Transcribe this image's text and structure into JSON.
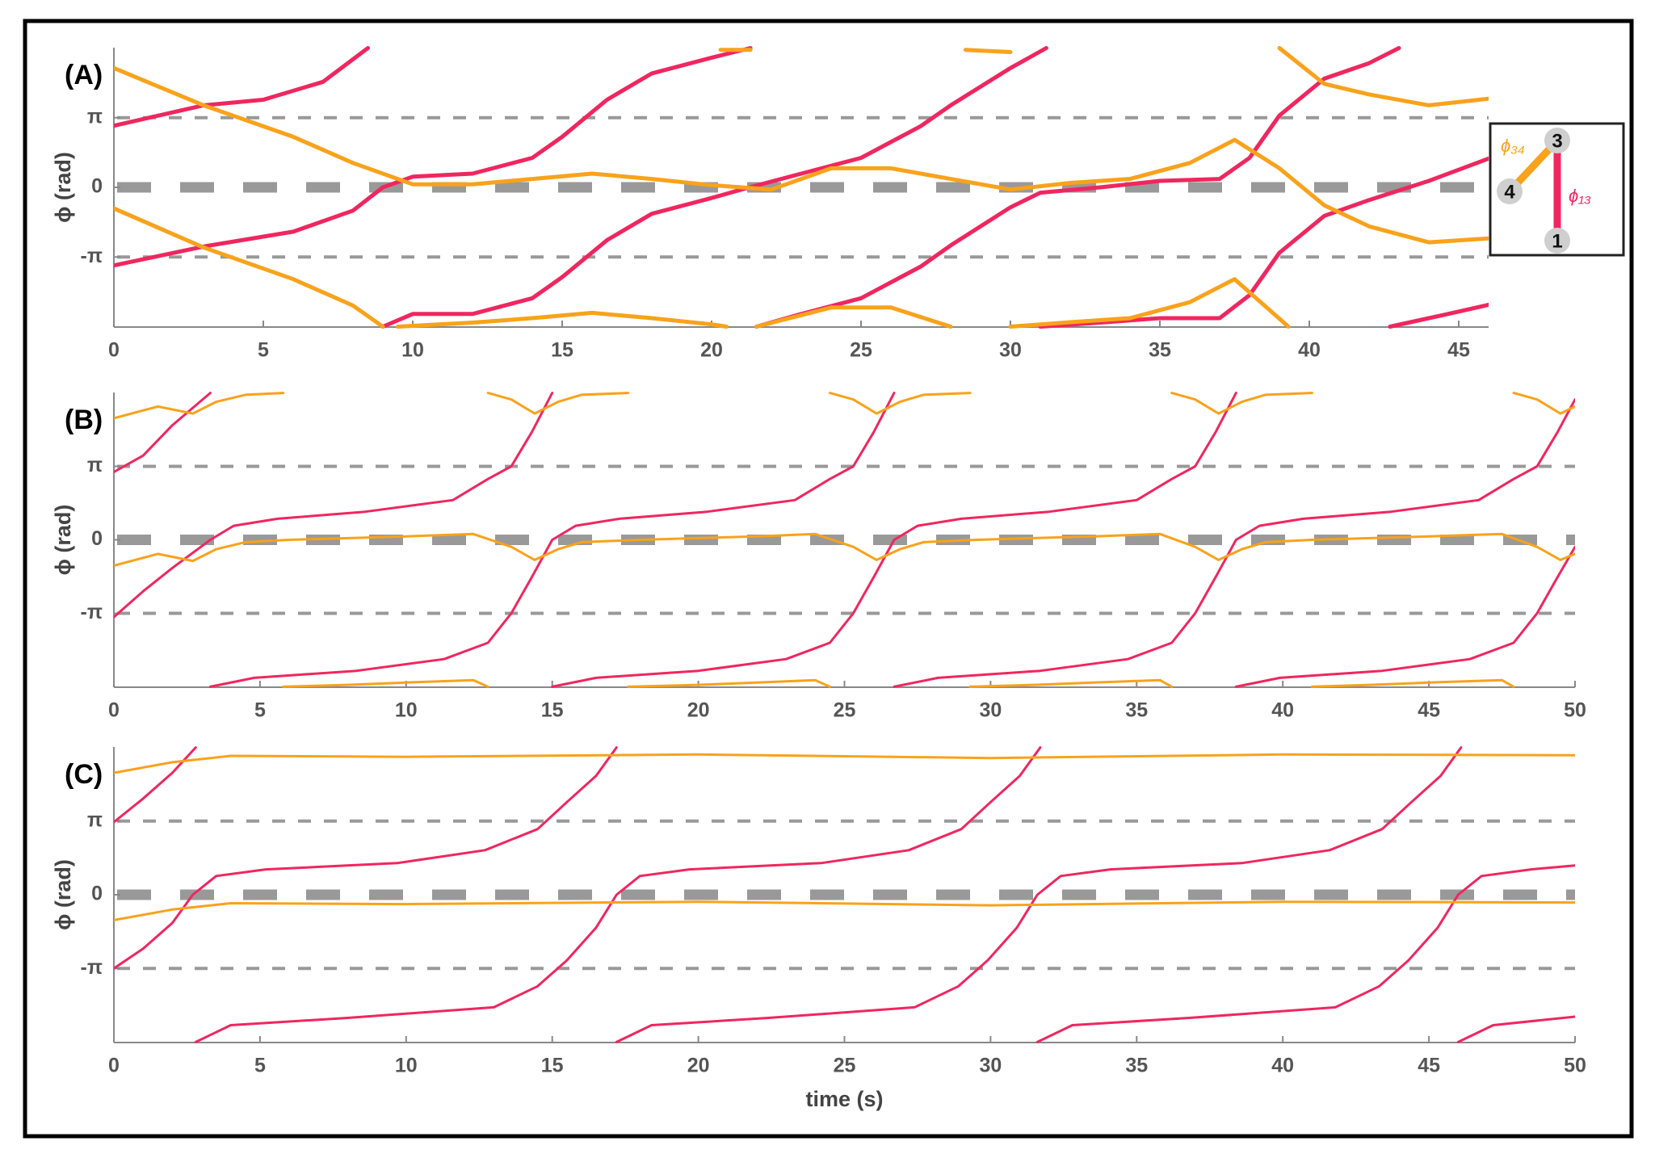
{
  "chart_data": [
    {
      "type": "line",
      "title": "(A)",
      "ylabel": "ϕ (rad)",
      "xlim": [
        0,
        46
      ],
      "xticks": [
        0,
        5,
        10,
        15,
        20,
        25,
        30,
        35,
        40,
        45
      ],
      "ylim": [
        -6.3,
        6.3
      ],
      "yticks": [
        {
          "value": -3.1416,
          "label": "-π"
        },
        0,
        {
          "value": 3.1416,
          "label": "π"
        }
      ],
      "grid": true,
      "inset": {
        "nodes": [
          "3",
          "4",
          "1"
        ],
        "labels": [
          "ϕ₃₄",
          "ϕ₁₃"
        ],
        "colors": [
          "#f9a21b",
          "#f0265f"
        ]
      },
      "series": [
        {
          "color": "#f0265f",
          "x": [
            0,
            3,
            5,
            7,
            8.5
          ],
          "values": [
            2.78,
            3.7,
            3.95,
            4.76,
            6.28
          ]
        },
        {
          "color": "#f0265f",
          "x": [
            0,
            3,
            6,
            8,
            9,
            10,
            12,
            14,
            15,
            16.5,
            18,
            20,
            21.3
          ],
          "values": [
            -3.52,
            -2.67,
            -2.0,
            -1.05,
            0,
            0.48,
            0.62,
            1.33,
            2.28,
            3.95,
            5.14,
            5.85,
            6.28
          ]
        },
        {
          "color": "#f0265f",
          "x": [
            9,
            10,
            12,
            14,
            15,
            16.5,
            18,
            20,
            21,
            23,
            25,
            27,
            28,
            30,
            31.2
          ],
          "values": [
            -6.28,
            -5.71,
            -5.71,
            -5.0,
            -4.05,
            -2.38,
            -1.19,
            -0.48,
            -0.1,
            0.62,
            1.33,
            2.76,
            3.7,
            5.38,
            6.28
          ]
        },
        {
          "color": "#f0265f",
          "x": [
            21.5,
            23,
            25,
            27,
            28,
            30,
            31,
            33,
            35,
            37,
            38,
            39,
            40.5,
            42,
            43
          ],
          "values": [
            -6.28,
            -5.71,
            -5.0,
            -3.57,
            -2.62,
            -0.9,
            -0.24,
            0,
            0.29,
            0.38,
            1.33,
            3.24,
            4.9,
            5.6,
            6.28
          ]
        },
        {
          "color": "#f0265f",
          "x": [
            31,
            33,
            35,
            37,
            38,
            39,
            40.5,
            42,
            44,
            46
          ],
          "values": [
            -6.28,
            -6.1,
            -5.9,
            -5.9,
            -4.86,
            -2.95,
            -1.29,
            -0.57,
            0.29,
            1.3
          ]
        },
        {
          "color": "#f0265f",
          "x": [
            42.7,
            44,
            45,
            46
          ],
          "values": [
            -6.28,
            -5.9,
            -5.6,
            -5.3
          ]
        },
        {
          "color": "#f9a21b",
          "x": [
            0,
            3,
            6,
            8,
            10,
            12,
            14,
            16,
            18,
            20,
            22,
            24,
            26,
            28,
            30,
            32,
            34,
            36,
            37.5,
            39,
            40.5,
            42,
            44,
            46
          ],
          "values": [
            5.38,
            3.7,
            2.28,
            1.1,
            0.14,
            0.14,
            0.38,
            0.62,
            0.38,
            0.1,
            -0.1,
            0.86,
            0.86,
            0.38,
            -0.1,
            0.2,
            0.38,
            1.1,
            2.14,
            0.86,
            -0.81,
            -1.76,
            -2.48,
            -2.3
          ]
        },
        {
          "color": "#f9a21b",
          "x": [
            0,
            3,
            6,
            8,
            9
          ],
          "values": [
            -0.95,
            -2.71,
            -4.14,
            -5.33,
            -6.28
          ]
        },
        {
          "color": "#f9a21b",
          "x": [
            9.5,
            12,
            14,
            16,
            18,
            20,
            20.5
          ],
          "values": [
            -6.28,
            -6.1,
            -5.9,
            -5.66,
            -5.9,
            -6.18,
            -6.28
          ]
        },
        {
          "color": "#f9a21b",
          "x": [
            21.5,
            24,
            26,
            28
          ],
          "values": [
            -6.28,
            -5.42,
            -5.42,
            -6.28
          ]
        },
        {
          "color": "#f9a21b",
          "x": [
            30,
            32,
            34,
            36,
            37.5,
            39.3
          ],
          "values": [
            -6.28,
            -6.08,
            -5.9,
            -5.18,
            -4.14,
            -6.28
          ]
        },
        {
          "color": "#f9a21b",
          "x": [
            20.3,
            21.3
          ],
          "values": [
            6.2,
            6.2
          ]
        },
        {
          "color": "#f9a21b",
          "x": [
            28.5,
            30
          ],
          "values": [
            6.2,
            6.1
          ]
        },
        {
          "color": "#f9a21b",
          "x": [
            39,
            40.5,
            42,
            44,
            46
          ],
          "values": [
            6.28,
            4.67,
            4.19,
            3.7,
            4.0
          ]
        }
      ]
    },
    {
      "type": "line",
      "title": "(B)",
      "ylabel": "ϕ (rad)",
      "xlim": [
        0,
        50
      ],
      "xticks": [
        0,
        5,
        10,
        15,
        20,
        25,
        30,
        35,
        40,
        45,
        50
      ],
      "ylim": [
        -6.3,
        6.3
      ],
      "yticks": [
        {
          "value": -3.1416,
          "label": "-π"
        },
        0,
        {
          "value": 3.1416,
          "label": "π"
        }
      ],
      "grid": true,
      "series": [
        {
          "color": "#f0265f",
          "x": [
            0,
            1,
            2,
            3.3
          ],
          "values": [
            2.9,
            3.6,
            4.9,
            6.28
          ]
        },
        {
          "color": "#f0265f",
          "x": [
            0,
            1,
            2,
            3.3,
            4.1,
            5.6,
            8.6,
            11.6,
            12.8,
            13.6,
            14.3,
            15
          ],
          "values": [
            -3.3,
            -2.2,
            -1.2,
            0,
            0.6,
            0.9,
            1.2,
            1.7,
            2.6,
            3.14,
            4.6,
            6.28
          ]
        },
        {
          "color": "#f0265f",
          "x": [
            3.3,
            4.8,
            8.3,
            11.3,
            12.8,
            13.6,
            14.3,
            15,
            15.8,
            17.3,
            20.3,
            23.3,
            24.5,
            25.3,
            26,
            26.7
          ],
          "values": [
            -6.28,
            -5.9,
            -5.6,
            -5.1,
            -4.4,
            -3.14,
            -1.6,
            0,
            0.6,
            0.9,
            1.2,
            1.7,
            2.6,
            3.14,
            4.6,
            6.28
          ]
        },
        {
          "color": "#f0265f",
          "x": [
            15,
            16.5,
            20,
            23,
            24.5,
            25.3,
            26,
            26.7,
            27.5,
            29,
            32,
            35,
            36.2,
            37,
            37.7,
            38.4
          ],
          "values": [
            -6.28,
            -5.9,
            -5.6,
            -5.1,
            -4.4,
            -3.14,
            -1.6,
            0,
            0.6,
            0.9,
            1.2,
            1.7,
            2.6,
            3.14,
            4.6,
            6.28
          ]
        },
        {
          "color": "#f0265f",
          "x": [
            26.7,
            28.2,
            31.7,
            34.7,
            36.2,
            37,
            37.7,
            38.4,
            39.2,
            40.7,
            43.7,
            46.7,
            47.9,
            48.7,
            49.4,
            50
          ],
          "values": [
            -6.28,
            -5.9,
            -5.6,
            -5.1,
            -4.4,
            -3.14,
            -1.6,
            0,
            0.6,
            0.9,
            1.2,
            1.7,
            2.6,
            3.14,
            4.6,
            6.0
          ]
        },
        {
          "color": "#f0265f",
          "x": [
            38.4,
            39.9,
            43.4,
            46.4,
            47.9,
            48.7,
            49.4,
            50
          ],
          "values": [
            -6.28,
            -5.9,
            -5.6,
            -5.1,
            -4.4,
            -3.14,
            -1.6,
            -0.3
          ]
        },
        {
          "color": "#f9a21b",
          "x": [
            0,
            1.5,
            2.7,
            3.5,
            4.5,
            6,
            10,
            12.3,
            13.6,
            14.4,
            15.2,
            16,
            18,
            22,
            24,
            25.3,
            26.1,
            26.9,
            27.7,
            29.5,
            33.5,
            35.8,
            37,
            37.8,
            38.6,
            39.4,
            41,
            45,
            47.5,
            48.7,
            49.5,
            50
          ],
          "values": [
            -1.1,
            -0.6,
            -0.9,
            -0.4,
            -0.1,
            0,
            0.15,
            0.25,
            -0.3,
            -0.86,
            -0.4,
            -0.1,
            0,
            0.15,
            0.25,
            -0.3,
            -0.86,
            -0.4,
            -0.1,
            0,
            0.15,
            0.25,
            -0.3,
            -0.86,
            -0.4,
            -0.1,
            0,
            0.15,
            0.25,
            -0.3,
            -0.86,
            -0.6
          ]
        },
        {
          "color": "#f9a21b",
          "x": [
            0,
            1.5,
            2.7,
            3.5,
            4.5,
            5.8
          ],
          "values": [
            5.2,
            5.7,
            5.4,
            5.9,
            6.2,
            6.28
          ]
        },
        {
          "color": "#f9a21b",
          "x": [
            12.8,
            13.6,
            14.4,
            15.2,
            16,
            17.6
          ],
          "values": [
            6.28,
            6.0,
            5.4,
            5.9,
            6.2,
            6.28
          ]
        },
        {
          "color": "#f9a21b",
          "x": [
            24.5,
            25.3,
            26.1,
            26.9,
            27.7,
            29.3
          ],
          "values": [
            6.28,
            6.0,
            5.4,
            5.9,
            6.2,
            6.28
          ]
        },
        {
          "color": "#f9a21b",
          "x": [
            36.2,
            37,
            37.8,
            38.6,
            39.4,
            41
          ],
          "values": [
            6.28,
            6.0,
            5.4,
            5.9,
            6.2,
            6.28
          ]
        },
        {
          "color": "#f9a21b",
          "x": [
            47.9,
            48.7,
            49.5,
            50
          ],
          "values": [
            6.28,
            6.0,
            5.4,
            5.7
          ]
        },
        {
          "color": "#f9a21b",
          "x": [
            5.8,
            8,
            10,
            12.3,
            12.8
          ],
          "values": [
            -6.28,
            -6.2,
            -6.1,
            -6.0,
            -6.28
          ]
        },
        {
          "color": "#f9a21b",
          "x": [
            17.6,
            20,
            22,
            24,
            24.5
          ],
          "values": [
            -6.28,
            -6.2,
            -6.1,
            -6.0,
            -6.28
          ]
        },
        {
          "color": "#f9a21b",
          "x": [
            29.3,
            31.5,
            33.5,
            35.8,
            36.2
          ],
          "values": [
            -6.28,
            -6.2,
            -6.1,
            -6.0,
            -6.28
          ]
        },
        {
          "color": "#f9a21b",
          "x": [
            41,
            43,
            45,
            47.5,
            47.9
          ],
          "values": [
            -6.28,
            -6.2,
            -6.1,
            -6.0,
            -6.28
          ]
        }
      ]
    },
    {
      "type": "line",
      "title": "(C)",
      "ylabel": "ϕ (rad)",
      "xlabel": "time (s)",
      "xlim": [
        0,
        50
      ],
      "xticks": [
        0,
        5,
        10,
        15,
        20,
        25,
        30,
        35,
        40,
        45,
        50
      ],
      "ylim": [
        -6.3,
        6.3
      ],
      "yticks": [
        {
          "value": -3.1416,
          "label": "-π"
        },
        0,
        {
          "value": 3.1416,
          "label": "π"
        }
      ],
      "grid": true,
      "series": [
        {
          "color": "#f0265f",
          "x": [
            0,
            1,
            2,
            2.8
          ],
          "values": [
            3.1,
            4.1,
            5.2,
            6.28
          ]
        },
        {
          "color": "#f0265f",
          "x": [
            0,
            1,
            2,
            2.7,
            3.5,
            5.2,
            9.7,
            12.7,
            14.5,
            15.5,
            16.5,
            17.2
          ],
          "values": [
            -3.14,
            -2.3,
            -1.2,
            0,
            0.8,
            1.08,
            1.35,
            1.9,
            2.8,
            3.95,
            5.07,
            6.28
          ]
        },
        {
          "color": "#f0265f",
          "x": [
            2.8,
            4,
            8,
            13,
            14.5,
            15.5,
            16.5,
            17.2,
            18,
            19.7,
            24.2,
            27.2,
            29,
            30,
            31,
            31.7
          ],
          "values": [
            -6.28,
            -5.56,
            -5.25,
            -4.8,
            -3.9,
            -2.8,
            -1.4,
            0,
            0.8,
            1.08,
            1.35,
            1.9,
            2.8,
            3.95,
            5.07,
            6.28
          ]
        },
        {
          "color": "#f0265f",
          "x": [
            17.2,
            18.4,
            22.4,
            27.4,
            28.9,
            29.9,
            30.9,
            31.6,
            32.4,
            34.1,
            38.6,
            41.6,
            43.4,
            44.4,
            45.4,
            46.1
          ],
          "values": [
            -6.28,
            -5.56,
            -5.25,
            -4.8,
            -3.9,
            -2.8,
            -1.4,
            0,
            0.8,
            1.08,
            1.35,
            1.9,
            2.8,
            3.95,
            5.07,
            6.28
          ]
        },
        {
          "color": "#f0265f",
          "x": [
            31.6,
            32.8,
            36.8,
            41.8,
            43.3,
            44.3,
            45.3,
            46,
            46.8,
            48.5,
            50
          ],
          "values": [
            -6.28,
            -5.56,
            -5.25,
            -4.8,
            -3.9,
            -2.8,
            -1.4,
            0,
            0.8,
            1.08,
            1.25
          ]
        },
        {
          "color": "#f0265f",
          "x": [
            46,
            47.2,
            50
          ],
          "values": [
            -6.28,
            -5.56,
            -5.2
          ]
        },
        {
          "color": "#f9a21b",
          "x": [
            0,
            2,
            4,
            10,
            20,
            30,
            40,
            50
          ],
          "values": [
            -1.08,
            -0.63,
            -0.36,
            -0.4,
            -0.3,
            -0.45,
            -0.3,
            -0.33
          ]
        },
        {
          "color": "#f9a21b",
          "x": [
            0,
            2,
            4,
            10,
            20,
            30,
            40,
            50
          ],
          "values": [
            5.2,
            5.65,
            5.92,
            5.88,
            5.98,
            5.83,
            5.98,
            5.95
          ]
        }
      ]
    }
  ]
}
